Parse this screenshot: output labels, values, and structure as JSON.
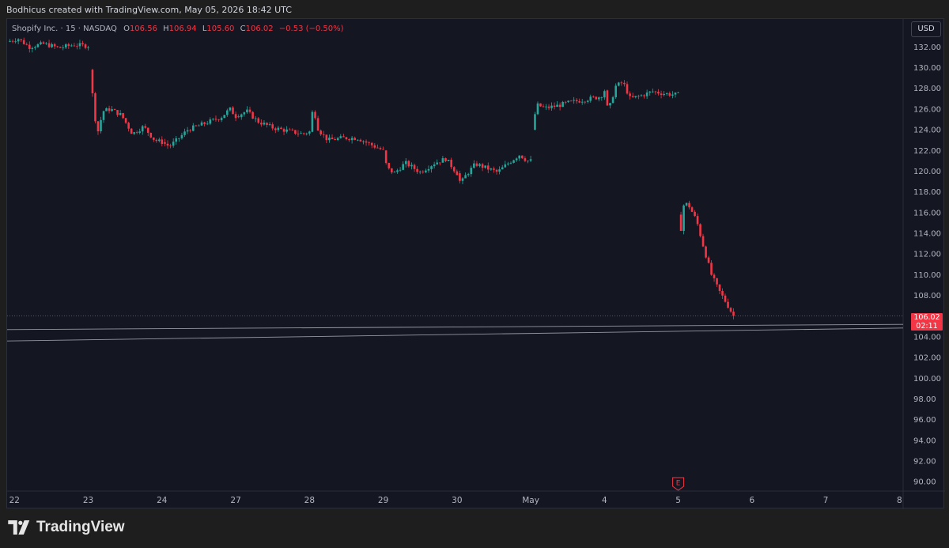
{
  "header": {
    "caption": "Bodhicus created with TradingView.com, May 05, 2026 18:42 UTC"
  },
  "legend": {
    "symbol": "Shopify Inc. · 15 · NASDAQ",
    "open_label": "O",
    "open": "106.56",
    "high_label": "H",
    "high": "106.94",
    "low_label": "L",
    "low": "105.60",
    "close_label": "C",
    "close": "106.02",
    "change": "−0.53 (−0.50%)"
  },
  "toolbar": {
    "currency": "USD"
  },
  "price_tag": {
    "price": "106.02",
    "countdown": "02:11"
  },
  "footer": {
    "brand": "TradingView"
  },
  "colors": {
    "up": "#26a69a",
    "down": "#f23645",
    "background": "#141722",
    "text": "#b2b5be"
  },
  "chart_data": {
    "type": "candlestick",
    "y_ticks": [
      "90.00",
      "92.00",
      "94.00",
      "96.00",
      "98.00",
      "100.00",
      "102.00",
      "104.00",
      "106.00",
      "108.00",
      "110.00",
      "112.00",
      "114.00",
      "116.00",
      "118.00",
      "120.00",
      "122.00",
      "124.00",
      "126.00",
      "128.00",
      "130.00",
      "132.00"
    ],
    "ylim": [
      89.1,
      134.7
    ],
    "x_ticks": [
      {
        "label": "22",
        "x": 0
      },
      {
        "label": "23",
        "x": 1
      },
      {
        "label": "24",
        "x": 2
      },
      {
        "label": "27",
        "x": 3
      },
      {
        "label": "28",
        "x": 4
      },
      {
        "label": "29",
        "x": 5
      },
      {
        "label": "30",
        "x": 6
      },
      {
        "label": "May",
        "x": 7
      },
      {
        "label": "4",
        "x": 8
      },
      {
        "label": "5",
        "x": 9
      },
      {
        "label": "6",
        "x": 10
      },
      {
        "label": "7",
        "x": 11
      },
      {
        "label": "8",
        "x": 12
      }
    ],
    "xlim": [
      -0.1,
      12.05
    ],
    "segments": [
      {
        "t0": -0.1,
        "t1": 1.0,
        "points": [
          [
            -0.1,
            132.5
          ],
          [
            0.05,
            132.8
          ],
          [
            0.2,
            132.0
          ],
          [
            0.4,
            132.3
          ],
          [
            0.6,
            131.9
          ],
          [
            0.8,
            132.2
          ],
          [
            1.0,
            132.1
          ]
        ]
      },
      {
        "t0": 1.02,
        "t1": 2.0,
        "points": [
          [
            1.02,
            129.8
          ],
          [
            1.08,
            126.0
          ],
          [
            1.12,
            123.5
          ],
          [
            1.2,
            125.8
          ],
          [
            1.3,
            126.0
          ],
          [
            1.45,
            125.4
          ],
          [
            1.6,
            123.6
          ],
          [
            1.75,
            124.3
          ],
          [
            1.9,
            123.0
          ],
          [
            2.0,
            122.8
          ]
        ]
      },
      {
        "t0": 2.0,
        "t1": 3.0,
        "points": [
          [
            2.0,
            122.8
          ],
          [
            2.1,
            122.4
          ],
          [
            2.2,
            123.0
          ],
          [
            2.35,
            124.0
          ],
          [
            2.5,
            124.4
          ],
          [
            2.65,
            124.8
          ],
          [
            2.8,
            125.2
          ],
          [
            2.92,
            126.0
          ],
          [
            3.0,
            125.3
          ]
        ]
      },
      {
        "t0": 3.0,
        "t1": 4.0,
        "points": [
          [
            3.0,
            125.3
          ],
          [
            3.15,
            125.8
          ],
          [
            3.3,
            124.8
          ],
          [
            3.5,
            124.2
          ],
          [
            3.7,
            123.9
          ],
          [
            3.9,
            123.6
          ],
          [
            4.0,
            123.8
          ]
        ]
      },
      {
        "t0": 4.0,
        "t1": 5.0,
        "points": [
          [
            4.0,
            123.8
          ],
          [
            4.05,
            126.2
          ],
          [
            4.12,
            124.0
          ],
          [
            4.25,
            123.0
          ],
          [
            4.45,
            123.2
          ],
          [
            4.65,
            123.2
          ],
          [
            4.85,
            122.5
          ],
          [
            5.0,
            122.0
          ]
        ]
      },
      {
        "t0": 5.0,
        "t1": 6.0,
        "points": [
          [
            5.0,
            122.0
          ],
          [
            5.05,
            120.3
          ],
          [
            5.15,
            119.8
          ],
          [
            5.3,
            120.8
          ],
          [
            5.5,
            119.9
          ],
          [
            5.7,
            120.8
          ],
          [
            5.85,
            121.2
          ],
          [
            6.0,
            119.8
          ]
        ]
      },
      {
        "t0": 6.0,
        "t1": 7.0,
        "points": [
          [
            6.0,
            119.8
          ],
          [
            6.05,
            118.8
          ],
          [
            6.12,
            119.6
          ],
          [
            6.25,
            120.7
          ],
          [
            6.4,
            120.3
          ],
          [
            6.55,
            119.9
          ],
          [
            6.7,
            120.8
          ],
          [
            6.85,
            121.6
          ],
          [
            6.95,
            121.0
          ]
        ]
      },
      {
        "t0": 7.02,
        "t1": 8.0,
        "points": [
          [
            7.02,
            124.0
          ],
          [
            7.08,
            126.4
          ],
          [
            7.2,
            126.1
          ],
          [
            7.35,
            126.3
          ],
          [
            7.5,
            126.6
          ],
          [
            7.65,
            126.8
          ],
          [
            7.8,
            127.0
          ],
          [
            7.95,
            127.2
          ],
          [
            8.0,
            127.8
          ]
        ]
      },
      {
        "t0": 8.0,
        "t1": 9.0,
        "points": [
          [
            8.0,
            127.8
          ],
          [
            8.05,
            125.7
          ],
          [
            8.15,
            128.2
          ],
          [
            8.25,
            128.6
          ],
          [
            8.35,
            127.0
          ],
          [
            8.5,
            127.3
          ],
          [
            8.65,
            127.7
          ],
          [
            8.8,
            127.5
          ],
          [
            8.95,
            127.4
          ]
        ]
      },
      {
        "t0": 9.0,
        "t1": 9.75,
        "points": [
          [
            9.0,
            115.8
          ],
          [
            9.03,
            114.0
          ],
          [
            9.08,
            117.0
          ],
          [
            9.15,
            116.6
          ],
          [
            9.25,
            115.2
          ],
          [
            9.35,
            112.5
          ],
          [
            9.45,
            110.0
          ],
          [
            9.55,
            108.5
          ],
          [
            9.65,
            107.3
          ],
          [
            9.75,
            106.02
          ]
        ]
      }
    ],
    "last_price": 106.02,
    "trendlines": [
      {
        "from": [
          -0.1,
          104.7
        ],
        "to": [
          12.05,
          105.2
        ]
      },
      {
        "from": [
          -0.1,
          103.6
        ],
        "to": [
          12.05,
          104.85
        ]
      }
    ],
    "earnings_marker": {
      "label": "E",
      "x": 9.0
    }
  }
}
